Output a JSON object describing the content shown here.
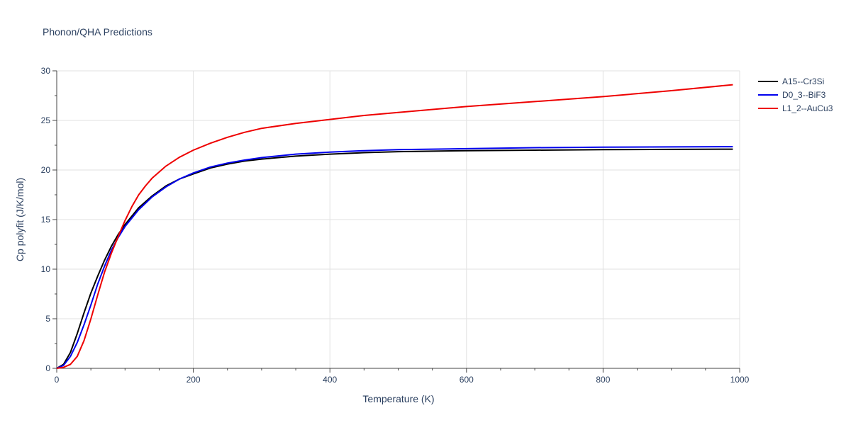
{
  "chart_data": {
    "type": "line",
    "title": "Phonon/QHA Predictions",
    "xlabel": "Temperature (K)",
    "ylabel": "Cp polyfit (J/K/mol)",
    "xlim": [
      0,
      1000
    ],
    "ylim": [
      0,
      30
    ],
    "xticks": [
      0,
      200,
      400,
      600,
      800,
      1000
    ],
    "yticks": [
      0,
      5,
      10,
      15,
      20,
      25,
      30
    ],
    "grid": true,
    "legend_position": "top-right",
    "series": [
      {
        "name": "A15--Cr3Si",
        "color": "#000000",
        "x": [
          0,
          10,
          20,
          30,
          40,
          50,
          60,
          70,
          80,
          90,
          100,
          120,
          140,
          160,
          180,
          200,
          225,
          250,
          275,
          300,
          350,
          400,
          450,
          500,
          600,
          700,
          800,
          900,
          990
        ],
        "y": [
          0,
          0.4,
          1.6,
          3.5,
          5.6,
          7.6,
          9.3,
          10.9,
          12.3,
          13.5,
          14.5,
          16.2,
          17.4,
          18.4,
          19.1,
          19.6,
          20.2,
          20.6,
          20.9,
          21.1,
          21.4,
          21.6,
          21.75,
          21.85,
          21.95,
          22.0,
          22.05,
          22.08,
          22.1
        ]
      },
      {
        "name": "D0_3--BiF3",
        "color": "#0000ee",
        "x": [
          0,
          10,
          20,
          30,
          40,
          50,
          60,
          70,
          80,
          90,
          100,
          120,
          140,
          160,
          180,
          200,
          225,
          250,
          275,
          300,
          350,
          400,
          450,
          500,
          600,
          700,
          800,
          900,
          990
        ],
        "y": [
          0,
          0.3,
          1.2,
          2.6,
          4.4,
          6.4,
          8.5,
          10.3,
          11.9,
          13.2,
          14.3,
          16.0,
          17.3,
          18.3,
          19.1,
          19.7,
          20.3,
          20.7,
          21.0,
          21.25,
          21.6,
          21.8,
          21.95,
          22.05,
          22.15,
          22.25,
          22.3,
          22.33,
          22.35
        ]
      },
      {
        "name": "L1_2--AuCu3",
        "color": "#ee0000",
        "x": [
          0,
          10,
          20,
          30,
          40,
          50,
          60,
          70,
          80,
          90,
          100,
          110,
          120,
          130,
          140,
          160,
          180,
          200,
          225,
          250,
          275,
          300,
          350,
          400,
          450,
          500,
          600,
          700,
          800,
          900,
          990
        ],
        "y": [
          0,
          0.1,
          0.4,
          1.2,
          2.8,
          5.0,
          7.4,
          9.7,
          11.6,
          13.3,
          14.9,
          16.3,
          17.5,
          18.4,
          19.2,
          20.4,
          21.3,
          22.0,
          22.7,
          23.3,
          23.8,
          24.2,
          24.7,
          25.1,
          25.5,
          25.8,
          26.4,
          26.9,
          27.4,
          28.0,
          28.6
        ]
      }
    ]
  }
}
